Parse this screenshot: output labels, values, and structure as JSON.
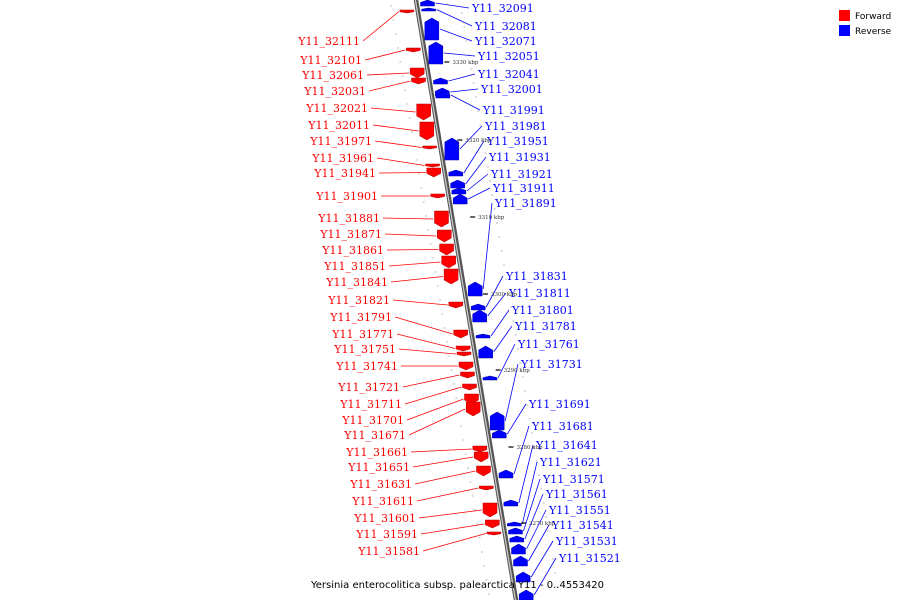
{
  "caption": "Yersinia enterocolitica subsp. palearctica Y11 - 0..4553420",
  "legend": [
    {
      "label": "Forward",
      "color": "#ff0000"
    },
    {
      "label": "Reverse",
      "color": "#0000ff"
    }
  ],
  "colors": {
    "forward": "#ff0000",
    "reverse": "#0000ff",
    "axis": "#999999"
  },
  "scale_marks": [
    "3330 kbp",
    "3320 kbp",
    "3310 kbp",
    "3300 kbp",
    "3290 kbp",
    "3280 kbp",
    "3270 kbp"
  ],
  "forward_genes": [
    "Y11_32111",
    "Y11_32101",
    "Y11_32061",
    "Y11_32031",
    "Y11_32021",
    "Y11_32011",
    "Y11_31971",
    "Y11_31961",
    "Y11_31941",
    "Y11_31901",
    "Y11_31881",
    "Y11_31871",
    "Y11_31861",
    "Y11_31851",
    "Y11_31841",
    "Y11_31821",
    "Y11_31791",
    "Y11_31771",
    "Y11_31751",
    "Y11_31741",
    "Y11_31721",
    "Y11_31711",
    "Y11_31701",
    "Y11_31671",
    "Y11_31661",
    "Y11_31651",
    "Y11_31631",
    "Y11_31611",
    "Y11_31601",
    "Y11_31591",
    "Y11_31581"
  ],
  "reverse_genes": [
    "Y11_32091",
    "Y11_32081",
    "Y11_32071",
    "Y11_32051",
    "Y11_32041",
    "Y11_32001",
    "Y11_31991",
    "Y11_31981",
    "Y11_31951",
    "Y11_31931",
    "Y11_31921",
    "Y11_31911",
    "Y11_31891",
    "Y11_31831",
    "Y11_31811",
    "Y11_31801",
    "Y11_31781",
    "Y11_31761",
    "Y11_31731",
    "Y11_31691",
    "Y11_31681",
    "Y11_31641",
    "Y11_31621",
    "Y11_31571",
    "Y11_31561",
    "Y11_31551",
    "Y11_31541",
    "Y11_31531",
    "Y11_31521"
  ]
}
